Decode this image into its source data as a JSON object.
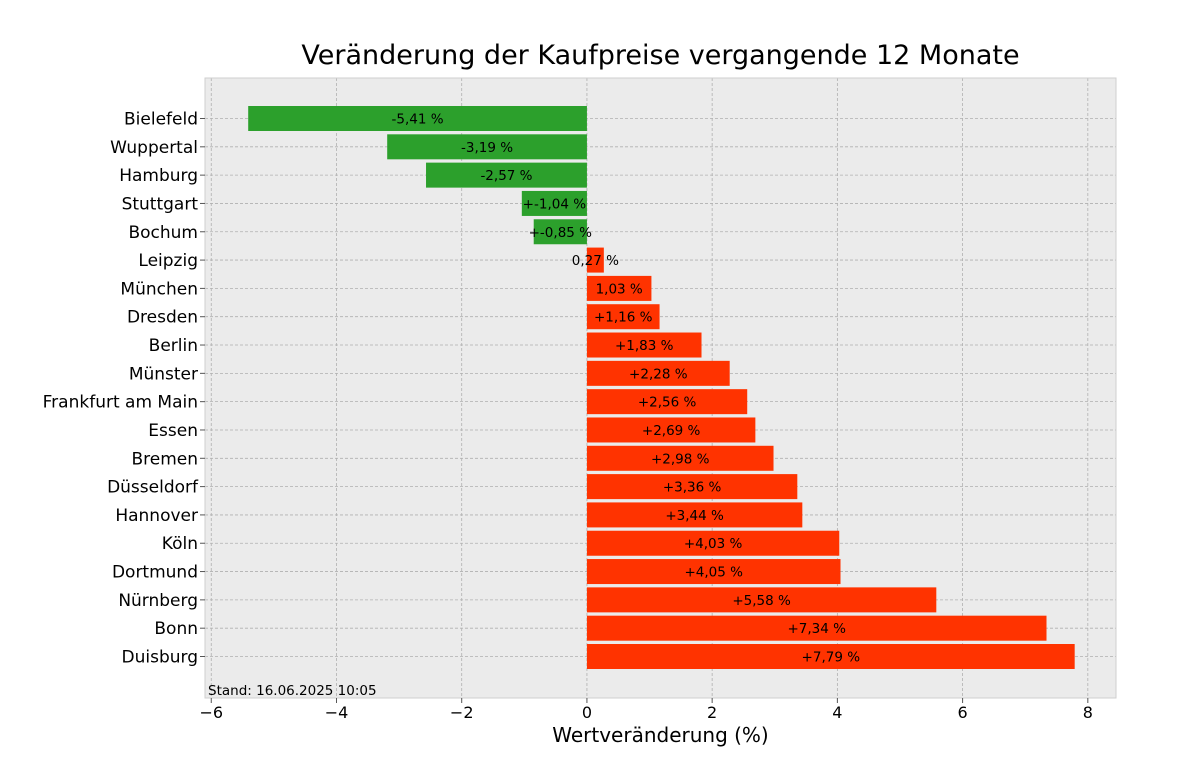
{
  "chart_data": {
    "type": "bar",
    "orientation": "horizontal",
    "title": "Veränderung der Kaufpreise vergangende 12 Monate",
    "xlabel": "Wertveränderung (%)",
    "ylabel": "",
    "xlim": [
      -6.1,
      8.45
    ],
    "xticks": [
      -6,
      -4,
      -2,
      0,
      2,
      4,
      6,
      8
    ],
    "xtick_labels": [
      "−6",
      "−4",
      "−2",
      "0",
      "2",
      "4",
      "6",
      "8"
    ],
    "grid": true,
    "annotation": "Stand: 16.06.2025 10:05",
    "colors": {
      "negative": "#2ca02c",
      "positive": "#ff3300",
      "background": "#ebebeb",
      "grid": "#b0b0b0"
    },
    "categories": [
      "Bielefeld",
      "Wuppertal",
      "Hamburg",
      "Stuttgart",
      "Bochum",
      "Leipzig",
      "München",
      "Dresden",
      "Berlin",
      "Münster",
      "Frankfurt am Main",
      "Essen",
      "Bremen",
      "Düsseldorf",
      "Hannover",
      "Köln",
      "Dortmund",
      "Nürnberg",
      "Bonn",
      "Duisburg"
    ],
    "values": [
      -5.41,
      -3.19,
      -2.57,
      -1.04,
      -0.85,
      0.27,
      1.03,
      1.16,
      1.83,
      2.28,
      2.56,
      2.69,
      2.98,
      3.36,
      3.44,
      4.03,
      4.05,
      5.58,
      7.34,
      7.79
    ],
    "data_labels": [
      "-5,41 %",
      "-3,19 %",
      "-2,57 %",
      "+-1,04 %",
      "+-0,85 %",
      "0,27 %",
      "1,03 %",
      "+1,16 %",
      "+1,83 %",
      "+2,28 %",
      "+2,56 %",
      "+2,69 %",
      "+2,98 %",
      "+3,36 %",
      "+3,44 %",
      "+4,03 %",
      "+4,05 %",
      "+5,58 %",
      "+7,34 %",
      "+7,79 %"
    ]
  }
}
